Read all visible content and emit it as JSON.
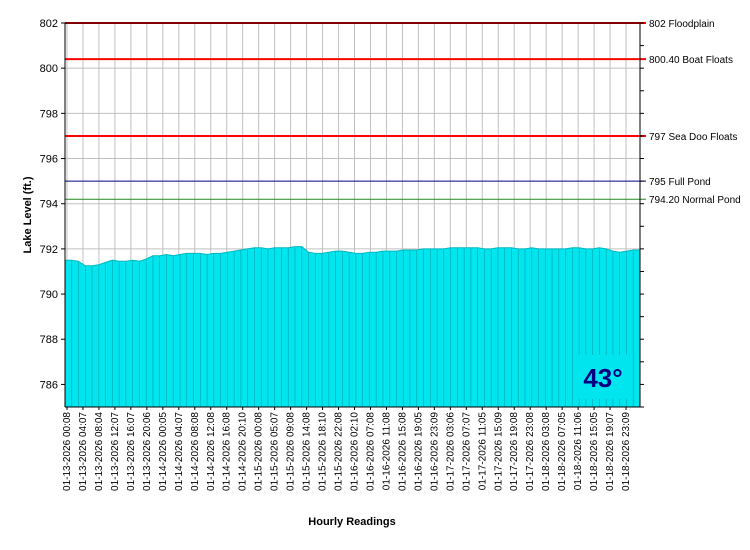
{
  "chart_data": {
    "type": "area",
    "xlabel": "Hourly Readings",
    "ylabel": "Lake Level (ft.)",
    "ylim": [
      785,
      802
    ],
    "yticks": [
      786,
      788,
      790,
      792,
      794,
      796,
      798,
      800,
      802
    ],
    "grid": true,
    "fill_color": "#00E5EE",
    "x_tick_labels": [
      "01-13-2026 00:08",
      "01-13-2026 04:07",
      "01-13-2026 08:04",
      "01-13-2026 12:07",
      "01-13-2026 16:07",
      "01-13-2026 20:06",
      "01-14-2026 00:05",
      "01-14-2026 04:07",
      "01-14-2026 08:08",
      "01-14-2026 12:08",
      "01-14-2026 16:08",
      "01-14-2026 20:10",
      "01-15-2026 00:08",
      "01-15-2026 05:07",
      "01-15-2026 09:08",
      "01-15-2026 14:08",
      "01-15-2026 18:10",
      "01-15-2026 22:08",
      "01-16-2026 02:10",
      "01-16-2026 07:08",
      "01-16-2026 11:08",
      "01-16-2026 15:08",
      "01-16-2026 19:05",
      "01-16-2026 23:09",
      "01-17-2026 03:06",
      "01-17-2026 07:07",
      "01-17-2026 11:05",
      "01-17-2026 15:09",
      "01-17-2026 19:08",
      "01-17-2026 23:08",
      "01-18-2026 03:08",
      "01-18-2026 07:05",
      "01-18-2026 11:06",
      "01-18-2026 15:05",
      "01-18-2026 19:07",
      "01-18-2026 23:09"
    ],
    "values": [
      791.5,
      791.5,
      791.45,
      791.25,
      791.25,
      791.3,
      791.4,
      791.5,
      791.45,
      791.45,
      791.5,
      791.45,
      791.55,
      791.7,
      791.7,
      791.75,
      791.7,
      791.75,
      791.8,
      791.8,
      791.8,
      791.75,
      791.8,
      791.8,
      791.85,
      791.9,
      791.95,
      792.0,
      792.05,
      792.05,
      792.0,
      792.05,
      792.05,
      792.05,
      792.1,
      792.1,
      791.85,
      791.8,
      791.8,
      791.85,
      791.9,
      791.9,
      791.85,
      791.8,
      791.8,
      791.85,
      791.85,
      791.9,
      791.9,
      791.9,
      791.95,
      791.95,
      791.95,
      792.0,
      792.0,
      792.0,
      792.0,
      792.05,
      792.05,
      792.05,
      792.05,
      792.05,
      792.0,
      792.0,
      792.05,
      792.05,
      792.05,
      792.0,
      792.0,
      792.05,
      792.0,
      792.0,
      792.0,
      792.0,
      792.0,
      792.05,
      792.05,
      792.0,
      792.0,
      792.05,
      792.0,
      791.9,
      791.85,
      791.9,
      791.95,
      791.95
    ],
    "reference_lines": [
      {
        "value": 802,
        "label": "802 Floodplain",
        "color": "#FF0000"
      },
      {
        "value": 800.4,
        "label": "800.40 Boat Floats",
        "color": "#FF0000"
      },
      {
        "value": 797,
        "label": "797 Sea Doo Floats",
        "color": "#FF0000"
      },
      {
        "value": 795,
        "label": "795 Full Pond",
        "color": "#000080"
      },
      {
        "value": 794.2,
        "label": "794.20 Normal Pond",
        "color": "#228B22"
      }
    ]
  },
  "temperature": {
    "label": "43°",
    "text_color": "#000080",
    "box_color": "#00E5EE"
  }
}
